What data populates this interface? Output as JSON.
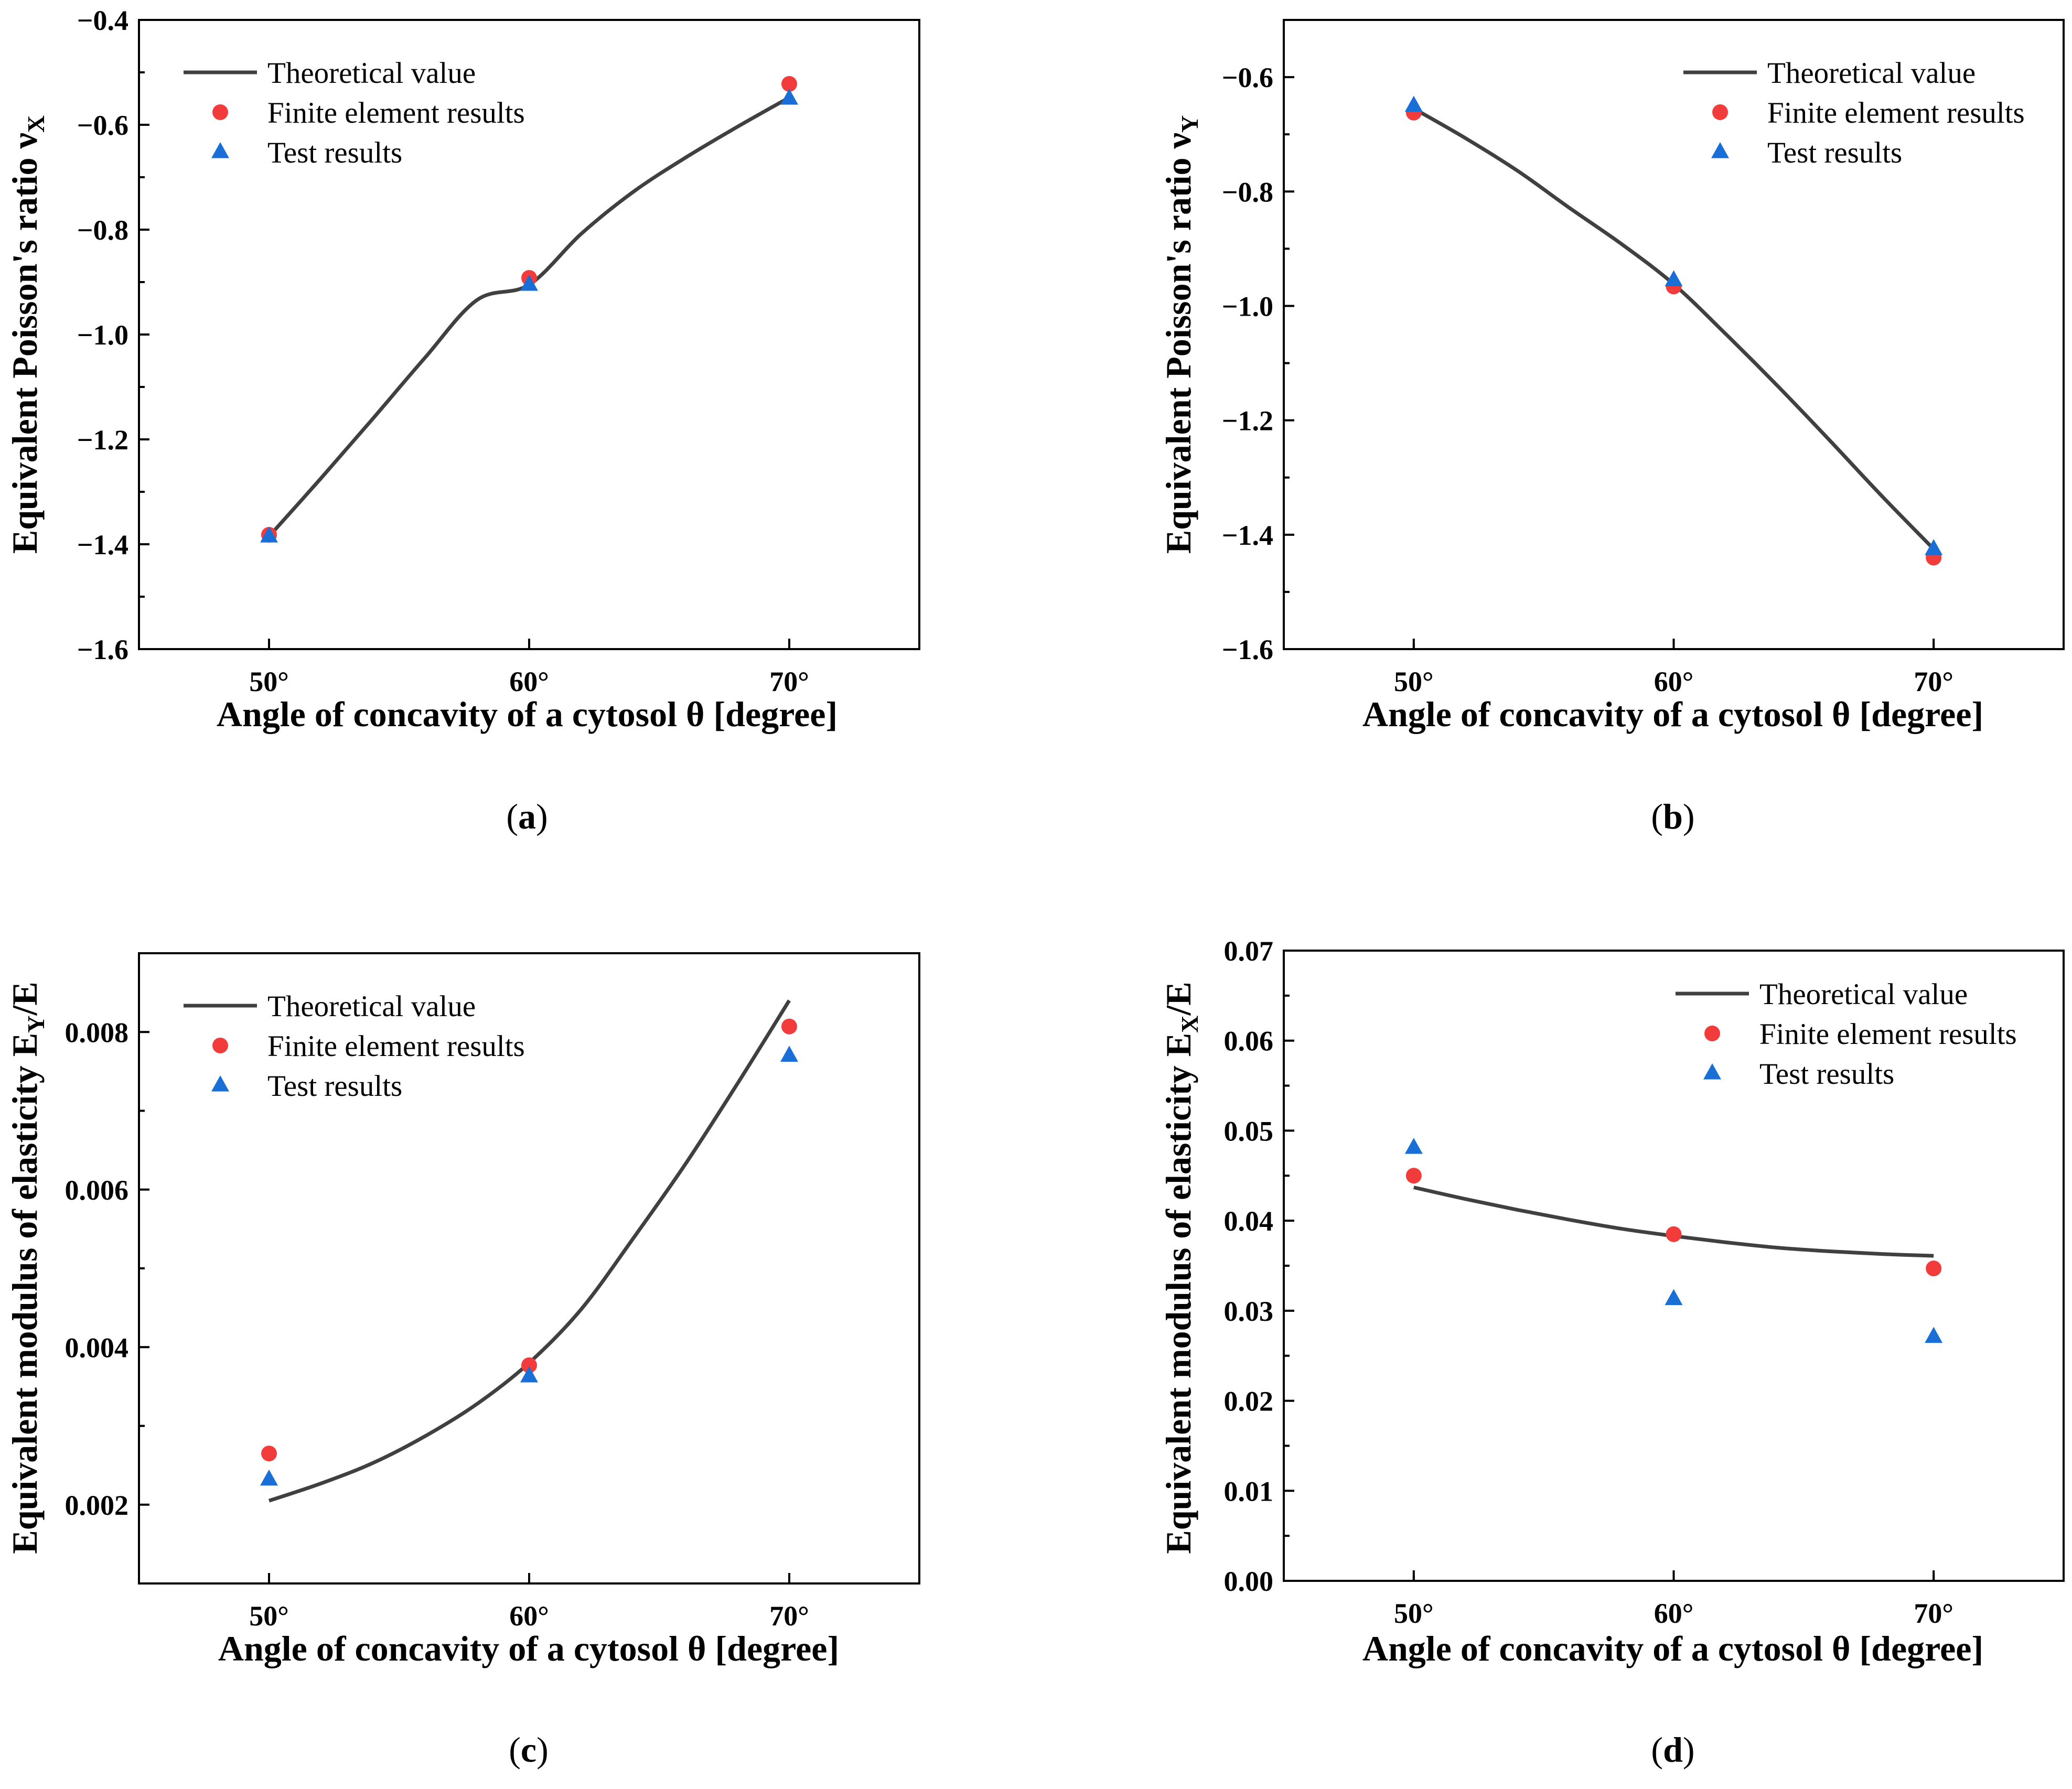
{
  "chart_data": [
    {
      "type": "line",
      "panel_label": "(a)",
      "panel_letter": "a",
      "title": "",
      "xlabel": "Angle of concavity of a cytosol θ [degree]",
      "ylabel_main": "Equivalent Poisson's ratio ν",
      "ylabel_sub": "X",
      "ylabel_tail": "",
      "categories": [
        "50°",
        "60°",
        "70°"
      ],
      "x": [
        50,
        60,
        70
      ],
      "xlim": [
        45,
        75
      ],
      "ylim": [
        -1.6,
        -0.4
      ],
      "yticks": [
        -1.6,
        -1.4,
        -1.2,
        -1.0,
        -0.8,
        -0.6,
        -0.4
      ],
      "ytick_labels": [
        "−1.6",
        "−1.4",
        "−1.2",
        "−1.0",
        "−0.8",
        "−0.6",
        "−0.4"
      ],
      "curve": {
        "x": [
          50,
          52,
          54,
          56,
          58,
          60,
          62,
          64,
          66,
          68,
          70
        ],
        "y": [
          -1.385,
          -1.274,
          -1.16,
          -1.044,
          -0.934,
          -0.905,
          -0.808,
          -0.728,
          -0.663,
          -0.604,
          -0.548
        ]
      },
      "series": [
        {
          "name": "Theoretical value",
          "kind": "line",
          "color": "#404040"
        },
        {
          "name": "Finite element results",
          "kind": "circle",
          "color": "#f23c3c",
          "values": [
            -1.382,
            -0.892,
            -0.522
          ]
        },
        {
          "name": "Test results",
          "kind": "triangle",
          "color": "#1a6fd6",
          "values": [
            -1.385,
            -0.905,
            -0.55
          ]
        }
      ],
      "legend_position": "top-left"
    },
    {
      "type": "line",
      "panel_label": "(b)",
      "panel_letter": "b",
      "title": "",
      "xlabel": "Angle of concavity of a cytosol θ [degree]",
      "ylabel_main": "Equivalent Poisson's ratio ν",
      "ylabel_sub": "Y",
      "ylabel_tail": "",
      "categories": [
        "50°",
        "60°",
        "70°"
      ],
      "x": [
        50,
        60,
        70
      ],
      "xlim": [
        45,
        75
      ],
      "ylim": [
        -1.6,
        -0.5
      ],
      "yticks": [
        -1.6,
        -1.4,
        -1.2,
        -1.0,
        -0.8,
        -0.6
      ],
      "ytick_labels": [
        "−1.6",
        "−1.4",
        "−1.2",
        "−1.0",
        "−0.8",
        "−0.6"
      ],
      "curve": {
        "x": [
          50,
          52,
          54,
          56,
          58,
          60,
          62,
          64,
          66,
          68,
          70
        ],
        "y": [
          -0.655,
          -0.707,
          -0.764,
          -0.829,
          -0.892,
          -0.962,
          -1.049,
          -1.14,
          -1.235,
          -1.332,
          -1.425
        ]
      },
      "series": [
        {
          "name": "Theoretical value",
          "kind": "line",
          "color": "#404040"
        },
        {
          "name": "Finite element results",
          "kind": "circle",
          "color": "#f23c3c",
          "values": [
            -0.662,
            -0.966,
            -1.44
          ]
        },
        {
          "name": "Test results",
          "kind": "triangle",
          "color": "#1a6fd6",
          "values": [
            -0.65,
            -0.955,
            -1.425
          ]
        }
      ],
      "legend_position": "top-right"
    },
    {
      "type": "line",
      "panel_label": "(c)",
      "panel_letter": "c",
      "title": "",
      "xlabel": "Angle of concavity of a cytosol θ [degree]",
      "ylabel_main": "Equivalent modulus of elasticity E",
      "ylabel_sub": "Y",
      "ylabel_tail": "/E",
      "categories": [
        "50°",
        "60°",
        "70°"
      ],
      "x": [
        50,
        60,
        70
      ],
      "xlim": [
        45,
        75
      ],
      "ylim": [
        0.001,
        0.009
      ],
      "yticks": [
        0.002,
        0.004,
        0.006,
        0.008
      ],
      "ytick_labels": [
        "0.002",
        "0.004",
        "0.006",
        "0.008"
      ],
      "curve": {
        "x": [
          50,
          52,
          54,
          56,
          58,
          60,
          62,
          64,
          66,
          68,
          70
        ],
        "y": [
          0.00205,
          0.00227,
          0.00253,
          0.00287,
          0.00328,
          0.0038,
          0.00448,
          0.00538,
          0.00632,
          0.00734,
          0.0084
        ]
      },
      "series": [
        {
          "name": "Theoretical value",
          "kind": "line",
          "color": "#404040"
        },
        {
          "name": "Finite element results",
          "kind": "circle",
          "color": "#f23c3c",
          "values": [
            0.00265,
            0.00377,
            0.00807
          ]
        },
        {
          "name": "Test results",
          "kind": "triangle",
          "color": "#1a6fd6",
          "values": [
            0.00232,
            0.00363,
            0.0077
          ]
        }
      ],
      "legend_position": "top-left"
    },
    {
      "type": "line",
      "panel_label": "(d)",
      "panel_letter": "d",
      "title": "",
      "xlabel": "Angle of concavity of a cytosol θ [degree]",
      "ylabel_main": "Equivalent modulus of elasticity E",
      "ylabel_sub": "X",
      "ylabel_tail": "/E",
      "categories": [
        "50°",
        "60°",
        "70°"
      ],
      "x": [
        50,
        60,
        70
      ],
      "xlim": [
        45,
        75
      ],
      "ylim": [
        0.0,
        0.07
      ],
      "yticks": [
        0.0,
        0.01,
        0.02,
        0.03,
        0.04,
        0.05,
        0.06,
        0.07
      ],
      "ytick_labels": [
        "0.00",
        "0.01",
        "0.02",
        "0.03",
        "0.04",
        "0.05",
        "0.06",
        "0.07"
      ],
      "curve": {
        "x": [
          50,
          52,
          54,
          56,
          58,
          60,
          62,
          64,
          66,
          68,
          70
        ],
        "y": [
          0.0437,
          0.0424,
          0.0412,
          0.0401,
          0.0391,
          0.0383,
          0.0376,
          0.037,
          0.0366,
          0.0363,
          0.0361
        ]
      },
      "series": [
        {
          "name": "Theoretical value",
          "kind": "line",
          "color": "#404040"
        },
        {
          "name": "Finite element results",
          "kind": "circle",
          "color": "#f23c3c",
          "values": [
            0.045,
            0.0385,
            0.0347
          ]
        },
        {
          "name": "Test results",
          "kind": "triangle",
          "color": "#1a6fd6",
          "values": [
            0.0481,
            0.0313,
            0.0271
          ]
        }
      ],
      "legend_position": "top-right"
    }
  ]
}
